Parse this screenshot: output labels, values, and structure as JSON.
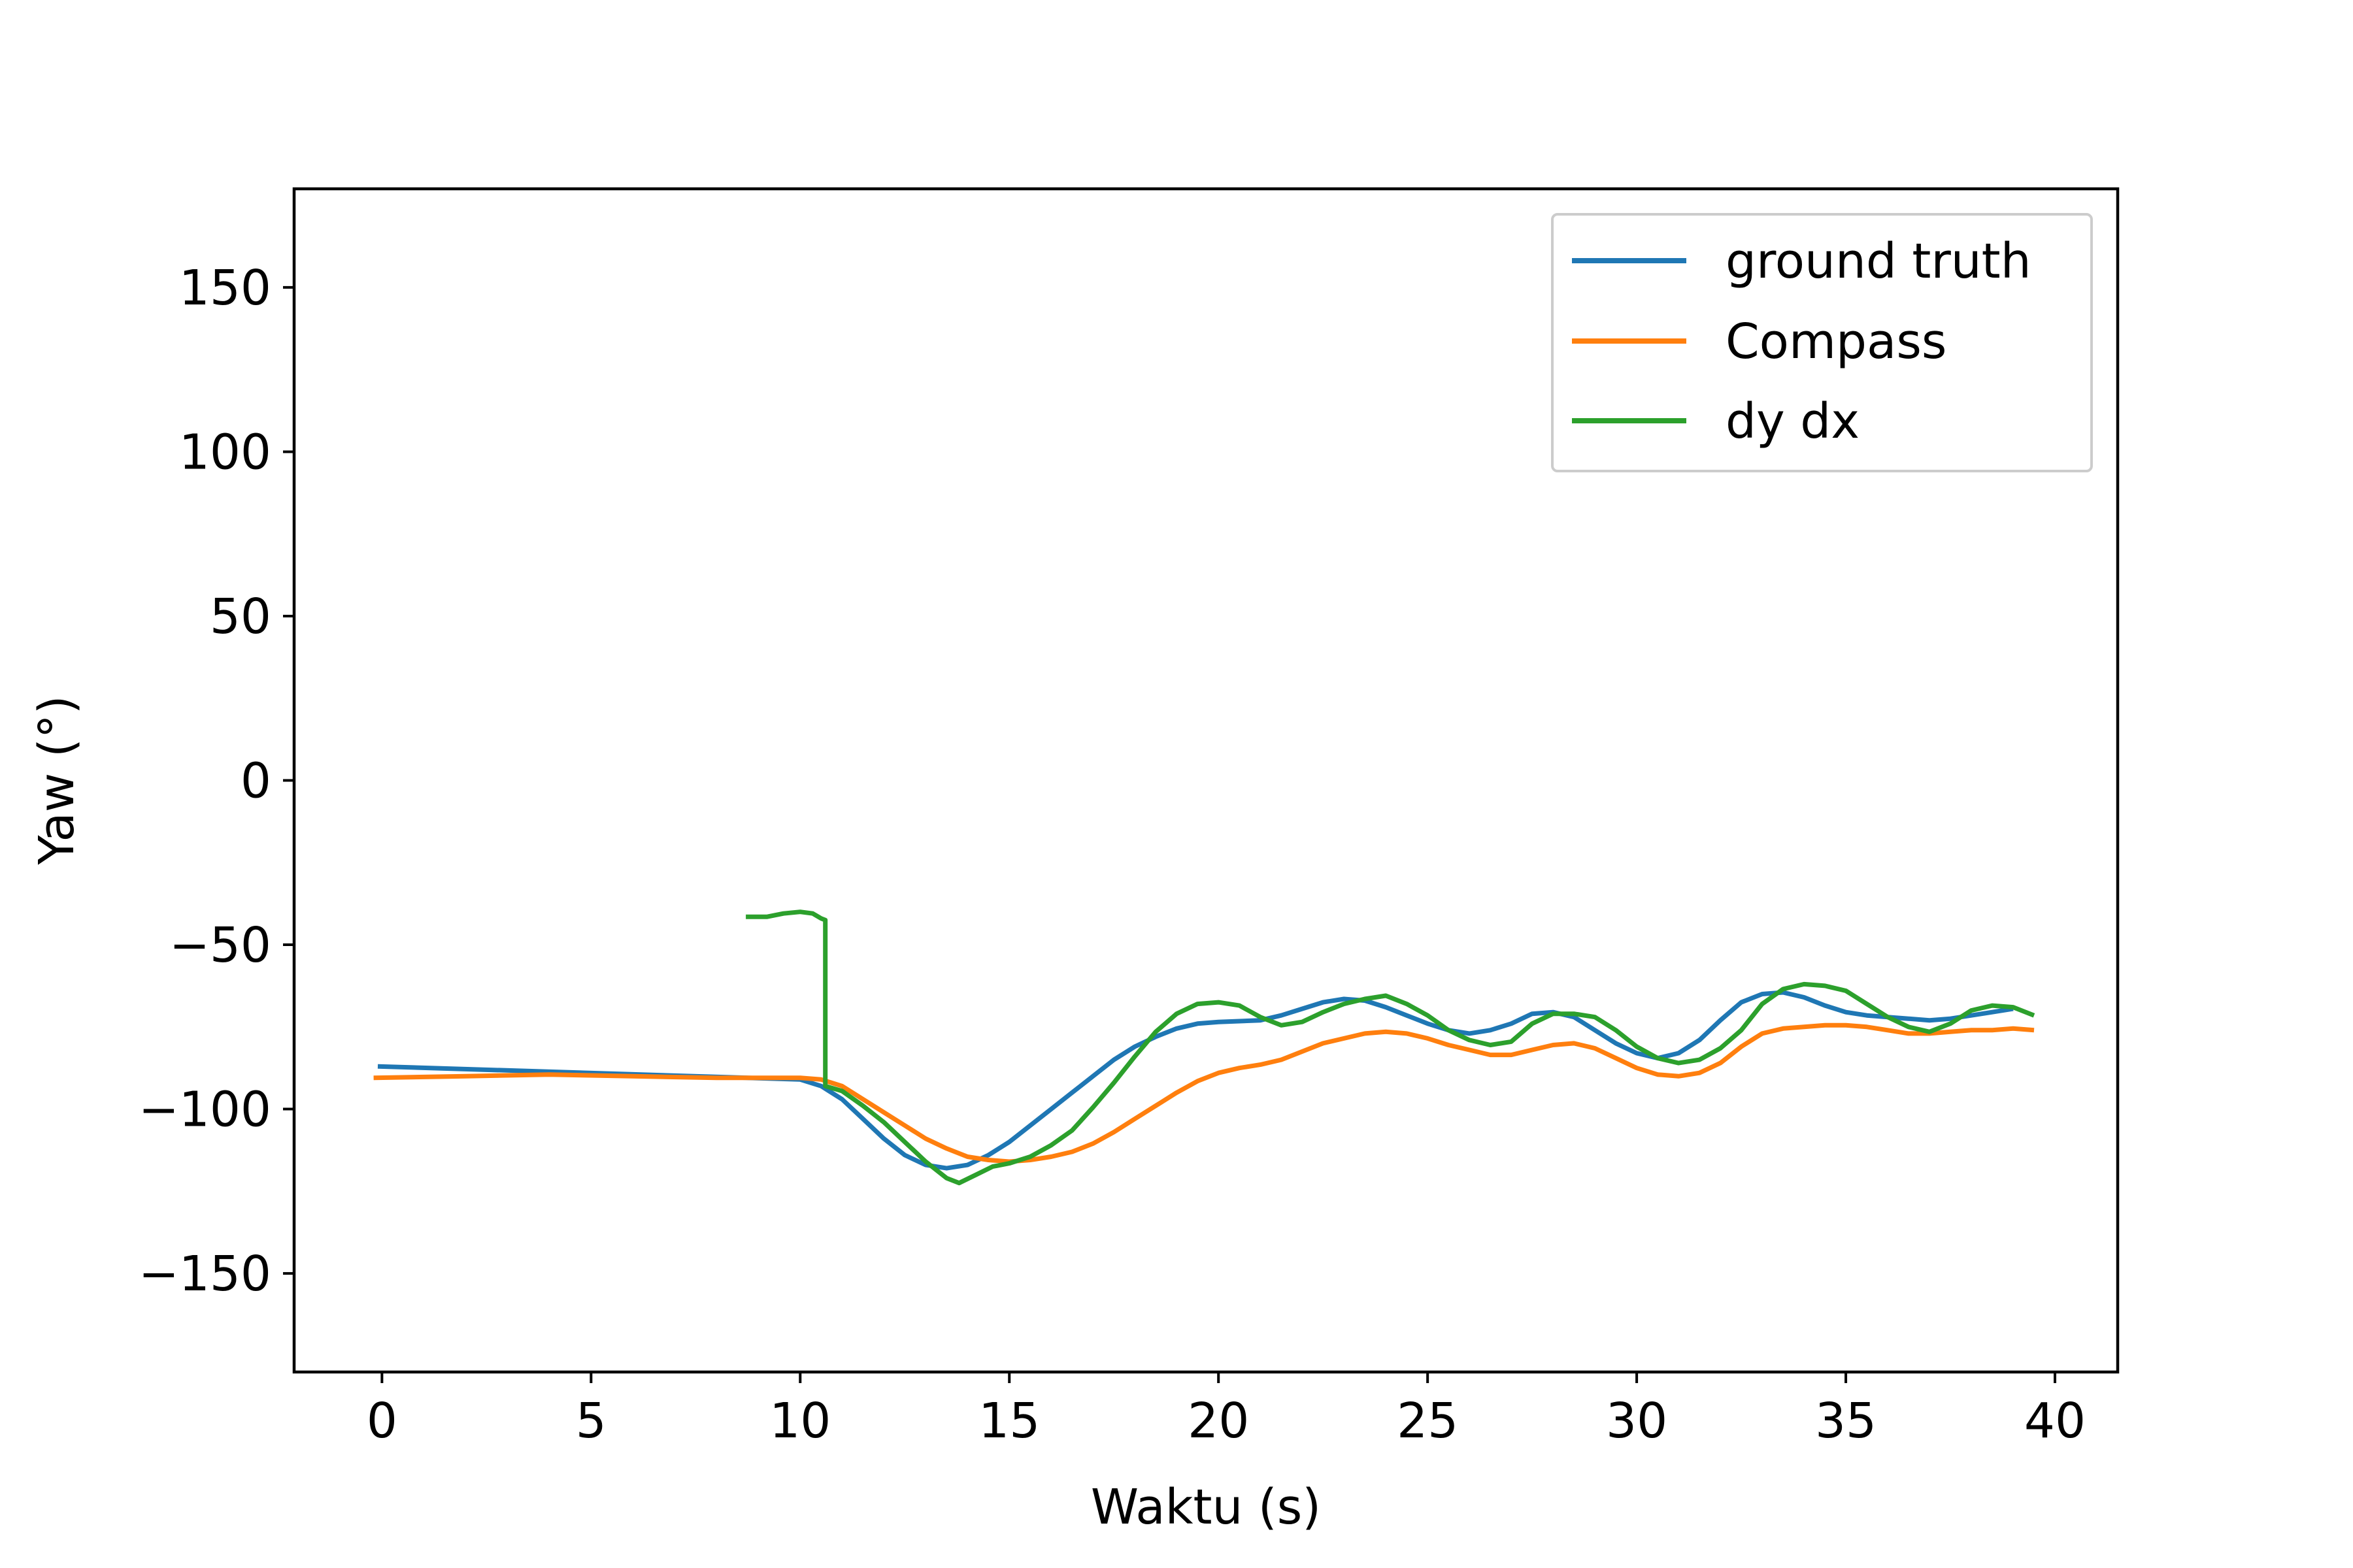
{
  "chart_data": {
    "type": "line",
    "title": "",
    "xlabel": "Waktu (s)",
    "ylabel": "Yaw (°)",
    "xlim": [
      -2.1,
      41.5
    ],
    "ylim": [
      -180,
      180
    ],
    "x_ticks": [
      0,
      5,
      10,
      15,
      20,
      25,
      30,
      35,
      40
    ],
    "x_tick_labels": [
      "0",
      "5",
      "10",
      "15",
      "20",
      "25",
      "30",
      "35",
      "40"
    ],
    "y_ticks": [
      150,
      100,
      50,
      0,
      -50,
      -100,
      -150
    ],
    "y_tick_labels": [
      "150",
      "100",
      "50",
      "0",
      "−50",
      "−100",
      "−150"
    ],
    "grid": false,
    "legend_position": "top-right",
    "series": [
      {
        "name": "ground truth",
        "color": "#1f77b4",
        "points": [
          [
            -0.1,
            -87
          ],
          [
            10,
            -91
          ],
          [
            10.5,
            -93
          ],
          [
            11,
            -97
          ],
          [
            11.5,
            -103
          ],
          [
            12,
            -109
          ],
          [
            12.5,
            -114
          ],
          [
            13,
            -117
          ],
          [
            13.5,
            -118
          ],
          [
            14,
            -117
          ],
          [
            14.5,
            -114
          ],
          [
            15,
            -110
          ],
          [
            15.5,
            -105
          ],
          [
            16,
            -100
          ],
          [
            16.5,
            -95
          ],
          [
            17,
            -90
          ],
          [
            17.5,
            -85
          ],
          [
            18,
            -81
          ],
          [
            18.5,
            -78
          ],
          [
            19,
            -75.5
          ],
          [
            19.5,
            -74
          ],
          [
            20,
            -73.5
          ],
          [
            21,
            -73
          ],
          [
            21.5,
            -71.5
          ],
          [
            22,
            -69.5
          ],
          [
            22.5,
            -67.5
          ],
          [
            23,
            -66.5
          ],
          [
            23.5,
            -67
          ],
          [
            24,
            -69
          ],
          [
            24.5,
            -71.5
          ],
          [
            25,
            -74
          ],
          [
            25.5,
            -76
          ],
          [
            26,
            -77
          ],
          [
            26.5,
            -76
          ],
          [
            27,
            -74
          ],
          [
            27.5,
            -71
          ],
          [
            28,
            -70.5
          ],
          [
            28.5,
            -72
          ],
          [
            29,
            -76
          ],
          [
            29.5,
            -80
          ],
          [
            30,
            -83
          ],
          [
            30.5,
            -84.5
          ],
          [
            31,
            -83
          ],
          [
            31.5,
            -79
          ],
          [
            32,
            -73
          ],
          [
            32.5,
            -67.5
          ],
          [
            33,
            -65
          ],
          [
            33.5,
            -64.5
          ],
          [
            34,
            -66
          ],
          [
            34.5,
            -68.5
          ],
          [
            35,
            -70.5
          ],
          [
            35.5,
            -71.5
          ],
          [
            36,
            -72
          ],
          [
            36.5,
            -72.5
          ],
          [
            37,
            -73
          ],
          [
            37.5,
            -72.5
          ],
          [
            38,
            -71.5
          ],
          [
            38.5,
            -70.5
          ],
          [
            39,
            -69.5
          ]
        ]
      },
      {
        "name": "Compass",
        "color": "#ff7f0e",
        "points": [
          [
            -0.2,
            -90.5
          ],
          [
            2,
            -90
          ],
          [
            4,
            -89.5
          ],
          [
            6,
            -90
          ],
          [
            8,
            -90.5
          ],
          [
            10,
            -90.5
          ],
          [
            10.5,
            -91
          ],
          [
            11,
            -93
          ],
          [
            11.5,
            -97
          ],
          [
            12,
            -101
          ],
          [
            12.5,
            -105
          ],
          [
            13,
            -109
          ],
          [
            13.5,
            -112
          ],
          [
            14,
            -114.5
          ],
          [
            14.5,
            -115.5
          ],
          [
            15,
            -116
          ],
          [
            15.5,
            -115.5
          ],
          [
            16,
            -114.5
          ],
          [
            16.5,
            -113
          ],
          [
            17,
            -110.5
          ],
          [
            17.5,
            -107
          ],
          [
            18,
            -103
          ],
          [
            18.5,
            -99
          ],
          [
            19,
            -95
          ],
          [
            19.5,
            -91.5
          ],
          [
            20,
            -89
          ],
          [
            20.5,
            -87.5
          ],
          [
            21,
            -86.5
          ],
          [
            21.5,
            -85
          ],
          [
            22,
            -82.5
          ],
          [
            22.5,
            -80
          ],
          [
            23,
            -78.5
          ],
          [
            23.5,
            -77
          ],
          [
            24,
            -76.5
          ],
          [
            24.5,
            -77
          ],
          [
            25,
            -78.5
          ],
          [
            25.5,
            -80.5
          ],
          [
            26,
            -82
          ],
          [
            26.5,
            -83.5
          ],
          [
            27,
            -83.5
          ],
          [
            27.5,
            -82
          ],
          [
            28,
            -80.5
          ],
          [
            28.5,
            -80
          ],
          [
            29,
            -81.5
          ],
          [
            29.5,
            -84.5
          ],
          [
            30,
            -87.5
          ],
          [
            30.5,
            -89.5
          ],
          [
            31,
            -90
          ],
          [
            31.5,
            -89
          ],
          [
            32,
            -86
          ],
          [
            32.5,
            -81
          ],
          [
            33,
            -77
          ],
          [
            33.5,
            -75.5
          ],
          [
            34,
            -75
          ],
          [
            34.5,
            -74.5
          ],
          [
            35,
            -74.5
          ],
          [
            35.5,
            -75
          ],
          [
            36,
            -76
          ],
          [
            36.5,
            -77
          ],
          [
            37,
            -77
          ],
          [
            37.5,
            -76.5
          ],
          [
            38,
            -76
          ],
          [
            38.5,
            -76
          ],
          [
            39,
            -75.5
          ],
          [
            39.5,
            -76
          ]
        ]
      },
      {
        "name": "dy dx",
        "color": "#2ca02c",
        "points": [
          [
            8.7,
            -41.5
          ],
          [
            9.2,
            -41.5
          ],
          [
            9.6,
            -40.5
          ],
          [
            10,
            -40
          ],
          [
            10.3,
            -40.5
          ],
          [
            10.5,
            -42
          ],
          [
            10.6,
            -42.5
          ],
          [
            10.6,
            -93
          ],
          [
            11,
            -94.5
          ],
          [
            11.5,
            -99
          ],
          [
            12,
            -104
          ],
          [
            12.5,
            -110
          ],
          [
            13,
            -116
          ],
          [
            13.5,
            -121
          ],
          [
            13.8,
            -122.5
          ],
          [
            14.2,
            -120
          ],
          [
            14.6,
            -117.5
          ],
          [
            15,
            -116.5
          ],
          [
            15.5,
            -114.5
          ],
          [
            16,
            -111
          ],
          [
            16.5,
            -106.5
          ],
          [
            17,
            -99.5
          ],
          [
            17.5,
            -92
          ],
          [
            18,
            -84
          ],
          [
            18.5,
            -76.5
          ],
          [
            19,
            -71
          ],
          [
            19.5,
            -68
          ],
          [
            20,
            -67.5
          ],
          [
            20.5,
            -68.5
          ],
          [
            21,
            -72
          ],
          [
            21.5,
            -74.5
          ],
          [
            22,
            -73.5
          ],
          [
            22.5,
            -70.5
          ],
          [
            23,
            -68
          ],
          [
            23.5,
            -66.5
          ],
          [
            24,
            -65.5
          ],
          [
            24.5,
            -68
          ],
          [
            25,
            -71.5
          ],
          [
            25.5,
            -76
          ],
          [
            26,
            -79
          ],
          [
            26.5,
            -80.5
          ],
          [
            27,
            -79.5
          ],
          [
            27.5,
            -74
          ],
          [
            28,
            -71
          ],
          [
            28.5,
            -71
          ],
          [
            29,
            -72
          ],
          [
            29.5,
            -76
          ],
          [
            30,
            -81
          ],
          [
            30.5,
            -84.5
          ],
          [
            31,
            -86
          ],
          [
            31.5,
            -85
          ],
          [
            32,
            -81.5
          ],
          [
            32.5,
            -76
          ],
          [
            33,
            -68
          ],
          [
            33.5,
            -63.5
          ],
          [
            34,
            -62
          ],
          [
            34.5,
            -62.5
          ],
          [
            35,
            -64
          ],
          [
            35.5,
            -68
          ],
          [
            36,
            -72
          ],
          [
            36.5,
            -75
          ],
          [
            37,
            -76.5
          ],
          [
            37.5,
            -74
          ],
          [
            38,
            -70
          ],
          [
            38.5,
            -68.5
          ],
          [
            39,
            -69
          ],
          [
            39.5,
            -71.5
          ]
        ]
      }
    ]
  }
}
